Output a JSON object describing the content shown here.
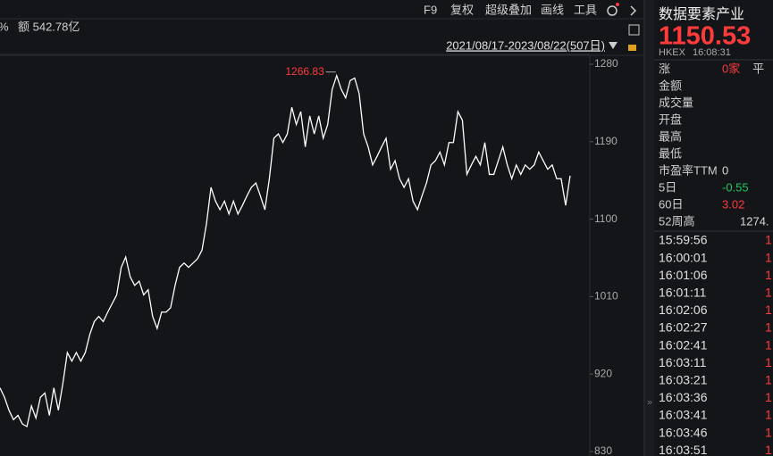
{
  "toolbar": {
    "left_info": [
      "%",
      "额 542.78亿"
    ],
    "buttons": [
      "F9",
      "复权",
      "超级叠加",
      "画线",
      "工具"
    ],
    "date_range": "2021/08/17-2023/08/22(507日)"
  },
  "chart_data": {
    "type": "line",
    "annotation": "1266.83",
    "annotation_color": "#ff3b3b",
    "series": [
      {
        "color": "#ffffff",
        "values": [
          904,
          893,
          878,
          867,
          872,
          862,
          859,
          883,
          869,
          893,
          898,
          872,
          904,
          878,
          909,
          945,
          935,
          945,
          935,
          945,
          966,
          981,
          987,
          981,
          992,
          1002,
          1012,
          1044,
          1056,
          1033,
          1023,
          1028,
          1012,
          1018,
          987,
          973,
          992,
          992,
          997,
          1023,
          1044,
          1049,
          1044,
          1049,
          1054,
          1064,
          1095,
          1137,
          1121,
          1111,
          1121,
          1106,
          1121,
          1106,
          1116,
          1127,
          1137,
          1142,
          1127,
          1111,
          1147,
          1194,
          1199,
          1189,
          1199,
          1230,
          1210,
          1225,
          1184,
          1220,
          1199,
          1220,
          1194,
          1210,
          1251,
          1266.83,
          1251,
          1241,
          1261,
          1264,
          1246,
          1199,
          1184,
          1163,
          1173,
          1184,
          1194,
          1158,
          1168,
          1147,
          1137,
          1147,
          1121,
          1111,
          1127,
          1142,
          1163,
          1168,
          1178,
          1163,
          1189,
          1189,
          1225,
          1215,
          1152,
          1163,
          1173,
          1163,
          1189,
          1152,
          1152,
          1168,
          1184,
          1163,
          1147,
          1163,
          1152,
          1163,
          1158,
          1163,
          1178,
          1168,
          1158,
          1163,
          1147,
          1147,
          1116,
          1150.53
        ]
      }
    ],
    "ylim": [
      825,
      1292
    ],
    "yticks": [
      830,
      920,
      1010,
      1100,
      1190,
      1280
    ],
    "grid": false
  },
  "quote_panel": {
    "name": "数据要素产业",
    "price": "1150.53",
    "exchange": "HKEX",
    "time": "16:08:31",
    "rows": [
      {
        "label": "涨",
        "value": "0家",
        "value_color": "#ff3b3b",
        "extra": "平"
      },
      {
        "label": "金额"
      },
      {
        "label": "成交量"
      },
      {
        "label": "开盘"
      },
      {
        "label": "最高"
      },
      {
        "label": "最低"
      },
      {
        "label": "市盈率TTM",
        "value": "0",
        "value_color": "#d8d8d8"
      },
      {
        "label": "5日",
        "value": "-0.55",
        "value_color": "#22c55e"
      },
      {
        "label": "60日",
        "value": "3.02",
        "value_color": "#ff3b3b"
      },
      {
        "label": "52周高",
        "value": "1274.",
        "value_color": "#d8d8d8"
      }
    ],
    "trades": [
      {
        "time": "15:59:56",
        "price": "1"
      },
      {
        "time": "16:00:01",
        "price": "1"
      },
      {
        "time": "16:01:06",
        "price": "1"
      },
      {
        "time": "16:01:11",
        "price": "1"
      },
      {
        "time": "16:02:06",
        "price": "1"
      },
      {
        "time": "16:02:27",
        "price": "1"
      },
      {
        "time": "16:02:41",
        "price": "1"
      },
      {
        "time": "16:03:11",
        "price": "1"
      },
      {
        "time": "16:03:21",
        "price": "1"
      },
      {
        "time": "16:03:36",
        "price": "1"
      },
      {
        "time": "16:03:41",
        "price": "1"
      },
      {
        "time": "16:03:46",
        "price": "1"
      },
      {
        "time": "16:03:51",
        "price": "1"
      }
    ]
  }
}
